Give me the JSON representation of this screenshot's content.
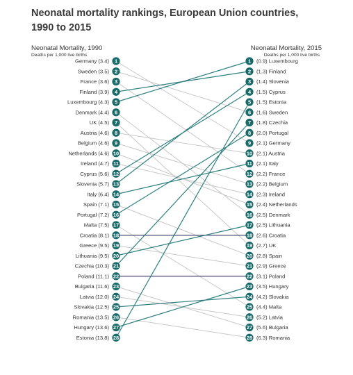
{
  "title": "Neonatal mortality rankings, European Union countries, 1990 to 2015",
  "colors": {
    "circle": "#1b6a6a",
    "line_highlight": "#2e7f7f",
    "line_muted": "#c8c8c8",
    "line_same_rank": "#4a4a7e",
    "text": "#333333"
  },
  "chart_data": {
    "type": "slope",
    "title": "Neonatal mortality rankings, European Union countries, 1990 to 2015",
    "left_axis": {
      "label": "Neonatal Mortality, 1990",
      "sublabel": "Deaths per 1,000 live births"
    },
    "right_axis": {
      "label": "Neonatal Mortality, 2015",
      "sublabel": "Deaths per 1,000 live births"
    },
    "left": [
      {
        "rank": 1,
        "country": "Germany",
        "value": "3.4"
      },
      {
        "rank": 2,
        "country": "Sweden",
        "value": "3.5"
      },
      {
        "rank": 3,
        "country": "France",
        "value": "3.6"
      },
      {
        "rank": 4,
        "country": "Finland",
        "value": "3.9"
      },
      {
        "rank": 5,
        "country": "Luxembourg",
        "value": "4.3"
      },
      {
        "rank": 6,
        "country": "Denmark",
        "value": "4.4"
      },
      {
        "rank": 7,
        "country": "UK",
        "value": "4.5"
      },
      {
        "rank": 8,
        "country": "Austria",
        "value": "4.6"
      },
      {
        "rank": 9,
        "country": "Belgium",
        "value": "4.6"
      },
      {
        "rank": 10,
        "country": "Netherlands",
        "value": "4.6"
      },
      {
        "rank": 11,
        "country": "Ireland",
        "value": "4.7"
      },
      {
        "rank": 12,
        "country": "Cyprus",
        "value": "5.6"
      },
      {
        "rank": 13,
        "country": "Slovenia",
        "value": "5.7"
      },
      {
        "rank": 14,
        "country": "Italy",
        "value": "6.4"
      },
      {
        "rank": 15,
        "country": "Spain",
        "value": "7.1"
      },
      {
        "rank": 16,
        "country": "Portugal",
        "value": "7.2"
      },
      {
        "rank": 17,
        "country": "Malta",
        "value": "7.5"
      },
      {
        "rank": 18,
        "country": "Croatia",
        "value": "8.1"
      },
      {
        "rank": 19,
        "country": "Greece",
        "value": "9.5"
      },
      {
        "rank": 20,
        "country": "Lithuania",
        "value": "9.5"
      },
      {
        "rank": 21,
        "country": "Czechia",
        "value": "10.3"
      },
      {
        "rank": 22,
        "country": "Poland",
        "value": "11.1"
      },
      {
        "rank": 23,
        "country": "Bulgaria",
        "value": "11.6"
      },
      {
        "rank": 24,
        "country": "Latvia",
        "value": "12.0"
      },
      {
        "rank": 25,
        "country": "Slovakia",
        "value": "12.5"
      },
      {
        "rank": 26,
        "country": "Romania",
        "value": "13.5"
      },
      {
        "rank": 27,
        "country": "Hungary",
        "value": "13.6"
      },
      {
        "rank": 28,
        "country": "Estonia",
        "value": "13.8"
      }
    ],
    "right": [
      {
        "rank": 1,
        "country": "Luxembourg",
        "value": "0.9"
      },
      {
        "rank": 2,
        "country": "Finland",
        "value": "1.3"
      },
      {
        "rank": 3,
        "country": "Slovenia",
        "value": "1.4"
      },
      {
        "rank": 4,
        "country": "Cyprus",
        "value": "1.5"
      },
      {
        "rank": 5,
        "country": "Estonia",
        "value": "1.5"
      },
      {
        "rank": 6,
        "country": "Sweden",
        "value": "1.6"
      },
      {
        "rank": 7,
        "country": "Czechia",
        "value": "1.8"
      },
      {
        "rank": 8,
        "country": "Portugal",
        "value": "2.0"
      },
      {
        "rank": 9,
        "country": "Germany",
        "value": "2.1"
      },
      {
        "rank": 10,
        "country": "Austria",
        "value": "2.1"
      },
      {
        "rank": 11,
        "country": "Italy",
        "value": "2.1"
      },
      {
        "rank": 12,
        "country": "France",
        "value": "2.2"
      },
      {
        "rank": 13,
        "country": "Belgium",
        "value": "2.2"
      },
      {
        "rank": 14,
        "country": "Ireland",
        "value": "2.3"
      },
      {
        "rank": 15,
        "country": "Netherlands",
        "value": "2.4"
      },
      {
        "rank": 16,
        "country": "Denmark",
        "value": "2.5"
      },
      {
        "rank": 17,
        "country": "Lithuania",
        "value": "2.5"
      },
      {
        "rank": 18,
        "country": "Croatia",
        "value": "2.6"
      },
      {
        "rank": 19,
        "country": "UK",
        "value": "2.7"
      },
      {
        "rank": 20,
        "country": "Spain",
        "value": "2.8"
      },
      {
        "rank": 21,
        "country": "Greece",
        "value": "2.9"
      },
      {
        "rank": 22,
        "country": "Poland",
        "value": "3.1"
      },
      {
        "rank": 23,
        "country": "Hungary",
        "value": "3.5"
      },
      {
        "rank": 24,
        "country": "Slovakia",
        "value": "4.2"
      },
      {
        "rank": 25,
        "country": "Malta",
        "value": "4.4"
      },
      {
        "rank": 26,
        "country": "Latvia",
        "value": "5.2"
      },
      {
        "rank": 27,
        "country": "Bulgaria",
        "value": "5.6"
      },
      {
        "rank": 28,
        "country": "Romania",
        "value": "6.3"
      }
    ],
    "highlighted_countries": [
      "Luxembourg",
      "Finland",
      "Slovenia",
      "Cyprus",
      "Estonia",
      "Czechia",
      "Portugal",
      "Italy",
      "Lithuania",
      "Hungary",
      "Slovakia"
    ],
    "same_rank_countries": [
      "Croatia",
      "Poland"
    ]
  }
}
